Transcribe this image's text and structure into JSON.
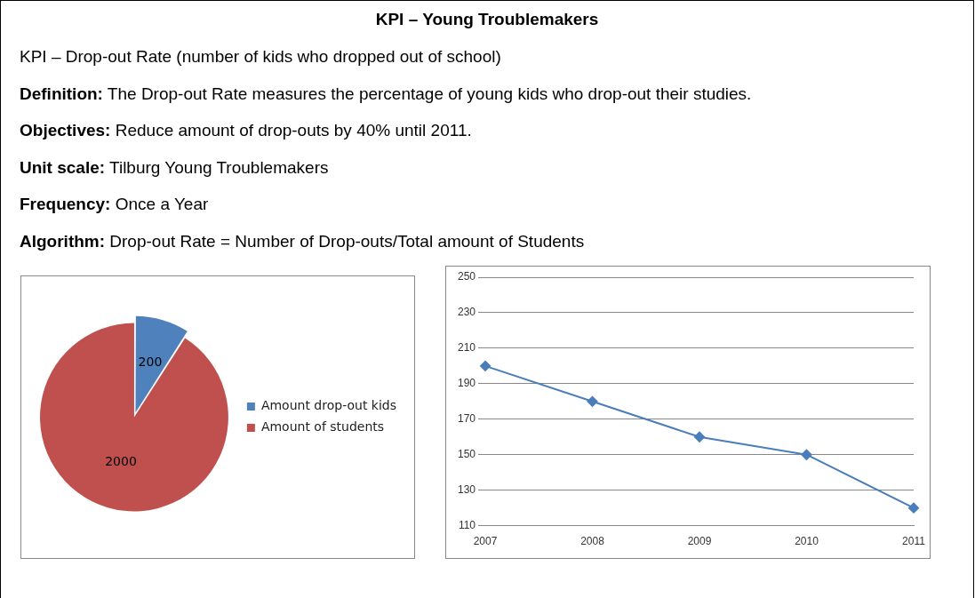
{
  "chart_data": [
    {
      "type": "other",
      "title": "KPI – Young Troublemakers",
      "annotations": [
        "KPI – Drop-out Rate (number of kids who dropped out of school)",
        "Definition: The Drop-out Rate measures the percentage of young kids who drop-out their studies.",
        "Objectives: Reduce amount of drop-outs by 40% until 2011.",
        "Unit scale: Tilburg Young Troublemakers",
        "Frequency: Once a Year",
        "Algorithm: Drop-out Rate = Number of Drop-outs/Total amount of Students"
      ]
    },
    {
      "type": "pie",
      "categories": [
        "Amount drop-out kids",
        "Amount of students"
      ],
      "values": [
        200,
        2000
      ],
      "colors": [
        "#4f81bd",
        "#c0504d"
      ],
      "data_labels": true,
      "legend": "right"
    },
    {
      "type": "line",
      "categories": [
        "2007",
        "2008",
        "2009",
        "2010",
        "2011"
      ],
      "series": [
        {
          "color": "#4a7ebb",
          "values": [
            200,
            180,
            160,
            150,
            120
          ]
        }
      ],
      "ylim": [
        110,
        250
      ],
      "yticks": [
        110,
        130,
        150,
        170,
        190,
        210,
        230,
        250
      ],
      "grid": "y",
      "marker": "diamond",
      "line_style": "solid"
    }
  ]
}
